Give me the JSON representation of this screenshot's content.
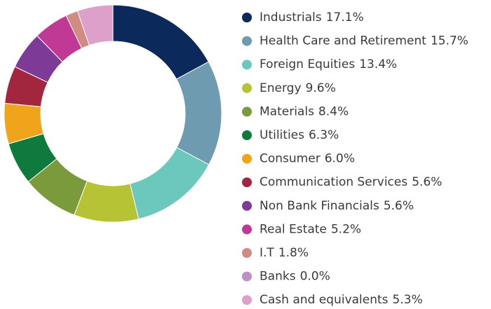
{
  "chart_data": {
    "type": "donut",
    "categories": [
      "Industrials",
      "Health Care and Retirement",
      "Foreign Equities",
      "Energy",
      "Materials",
      "Utilities",
      "Consumer",
      "Communication Services",
      "Non Bank Financials",
      "Real Estate",
      "I.T",
      "Banks",
      "Cash and equivalents"
    ],
    "values": [
      17.1,
      15.7,
      13.4,
      9.6,
      8.4,
      6.3,
      6.0,
      5.6,
      5.6,
      5.2,
      1.8,
      0.0,
      5.3
    ],
    "value_labels": [
      "17.1%",
      "15.7%",
      "13.4%",
      "9.6%",
      "8.4%",
      "6.3%",
      "6.0%",
      "5.6%",
      "5.6%",
      "5.2%",
      "1.8%",
      "0.0%",
      "5.3%"
    ],
    "colors": [
      "#0b2a5b",
      "#6f9bb0",
      "#6cc8bc",
      "#b5c334",
      "#7a9a3c",
      "#0e7a3c",
      "#f0a41c",
      "#a3263f",
      "#7d3a96",
      "#c03a95",
      "#d08b83",
      "#c08fc7",
      "#dca0cb"
    ],
    "legend": "right"
  }
}
